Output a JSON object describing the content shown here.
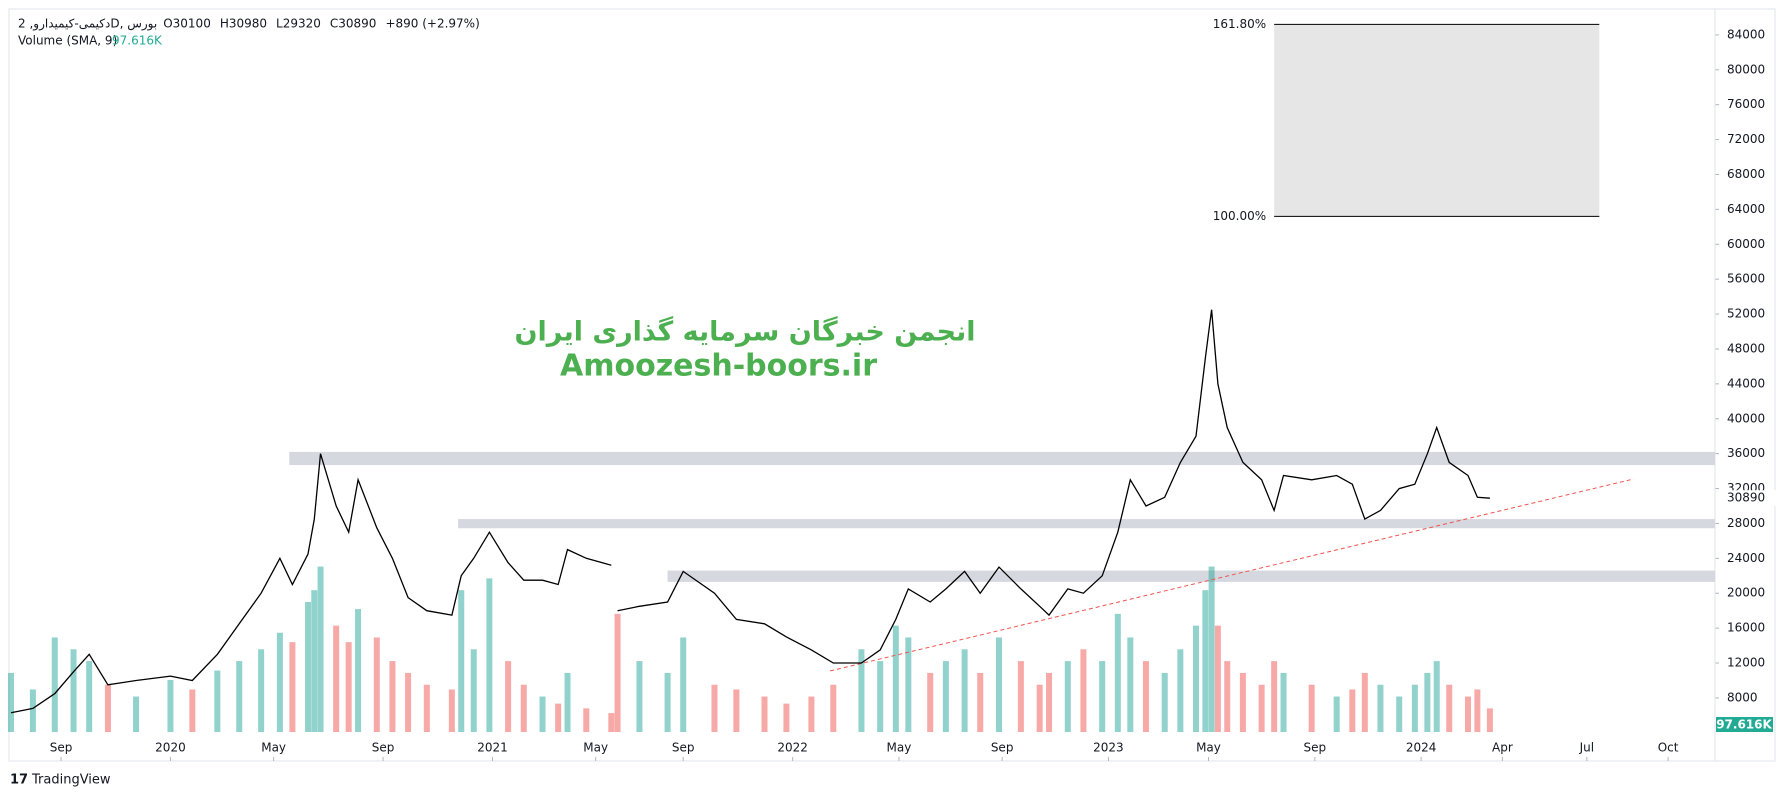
{
  "header": {
    "symbol": "دکیمی-کیمیدارو, 2D, بورس",
    "ohlc": [
      "O30100",
      "H30980",
      "L29320",
      "C30890",
      "+890 (+2.97%)"
    ],
    "indicator": "Volume (SMA, 9)"
  },
  "watermark": [
    "انجمن خبرگان سرمایه گذاری ایران",
    "Amoozesh-boors.ir"
  ],
  "footer": "TradingView",
  "chart_data": {
    "type": "line",
    "color": "#000000",
    "x": [
      2019.49,
      2019.56,
      2019.63,
      2019.69,
      2019.74,
      2019.8,
      2019.89,
      2020.0,
      2020.07,
      2020.15,
      2020.22,
      2020.29,
      2020.35,
      2020.39,
      2020.44,
      2020.46,
      2020.48,
      2020.53,
      2020.57,
      2020.6,
      2020.66,
      2020.71,
      2020.76,
      2020.82,
      2020.9,
      2020.93,
      2020.97,
      2021.02,
      2021.08,
      2021.13,
      2021.19,
      2021.24,
      2021.27,
      2021.33,
      2021.41,
      2021.42,
      2021.43,
      2021.5,
      2021.59,
      2021.64,
      2021.74,
      2021.81,
      2021.9,
      2021.97,
      2022.05,
      2022.12,
      2022.21,
      2022.27,
      2022.32,
      2022.36,
      2022.43,
      2022.48,
      2022.54,
      2022.59,
      2022.65,
      2022.72,
      2022.78,
      2022.81,
      2022.87,
      2022.92,
      2022.98,
      2023.03,
      2023.07,
      2023.12,
      2023.18,
      2023.23,
      2023.28,
      2023.31,
      2023.33,
      2023.35,
      2023.38,
      2023.43,
      2023.49,
      2023.53,
      2023.56,
      2023.65,
      2023.73,
      2023.78,
      2023.82,
      2023.87,
      2023.93,
      2023.98,
      2024.02,
      2024.05,
      2024.09,
      2024.15,
      2024.18,
      2024.22
    ],
    "values": [
      6300,
      6800,
      8500,
      11000,
      13000,
      9500,
      10000,
      10500,
      10000,
      13000,
      16500,
      20000,
      24000,
      21000,
      24500,
      28500,
      36000,
      30000,
      27000,
      33000,
      27500,
      24000,
      19500,
      18000,
      17500,
      22000,
      24000,
      27000,
      23500,
      21500,
      21500,
      21000,
      25000,
      24000,
      23200,
      null,
      18000,
      18500,
      19000,
      22500,
      20000,
      17000,
      16500,
      15000,
      13500,
      12000,
      12000,
      13500,
      17000,
      20500,
      19000,
      20500,
      22500,
      20000,
      23000,
      20500,
      18500,
      17500,
      20500,
      20000,
      22000,
      27000,
      33000,
      30000,
      31000,
      35000,
      38000,
      47000,
      52500,
      44000,
      39000,
      35000,
      33000,
      29500,
      33500,
      33000,
      33500,
      32500,
      28500,
      29500,
      32000,
      32500,
      36000,
      39000,
      35000,
      33500,
      31000,
      30890
    ],
    "volume": {
      "up_color": "rgba(38,166,154,0.5)",
      "down_color": "rgba(239,83,80,0.5)",
      "ylim": [
        0,
        3000000
      ],
      "values": [
        250000,
        180000,
        400000,
        350000,
        300000,
        200000,
        150000,
        220000,
        180000,
        260000,
        300000,
        350000,
        420000,
        380000,
        550000,
        600000,
        700000,
        450000,
        380000,
        520000,
        400000,
        300000,
        250000,
        200000,
        180000,
        600000,
        350000,
        650000,
        300000,
        200000,
        150000,
        120000,
        250000,
        100000,
        80000,
        null,
        500000,
        300000,
        250000,
        400000,
        200000,
        180000,
        150000,
        120000,
        150000,
        200000,
        350000,
        300000,
        450000,
        400000,
        250000,
        300000,
        350000,
        250000,
        400000,
        300000,
        200000,
        250000,
        300000,
        350000,
        300000,
        500000,
        400000,
        300000,
        250000,
        350000,
        450000,
        600000,
        700000,
        450000,
        300000,
        250000,
        200000,
        300000,
        250000,
        200000,
        150000,
        180000,
        250000,
        200000,
        150000,
        200000,
        250000,
        300000,
        200000,
        150000,
        180000,
        100000
      ],
      "sma": {
        "value": 97616,
        "label": "97.616K"
      },
      "sma_color": "#22ab94"
    },
    "last_price": 30890,
    "xlim": [
      2019.49,
      2024.94
    ],
    "ylim": [
      1000,
      88000
    ],
    "yticks": [
      8000,
      12000,
      16000,
      20000,
      24000,
      28000,
      32000,
      36000,
      40000,
      44000,
      48000,
      52000,
      56000,
      60000,
      64000,
      68000,
      72000,
      76000,
      80000,
      84000
    ],
    "xticks": [
      {
        "value": 2019.65,
        "label": "Sep"
      },
      {
        "value": 2020.0,
        "label": "2020"
      },
      {
        "value": 2020.33,
        "label": "May"
      },
      {
        "value": 2020.68,
        "label": "Sep"
      },
      {
        "value": 2021.03,
        "label": "2021"
      },
      {
        "value": 2021.36,
        "label": "May"
      },
      {
        "value": 2021.64,
        "label": "Sep"
      },
      {
        "value": 2021.99,
        "label": "2022"
      },
      {
        "value": 2022.33,
        "label": "May"
      },
      {
        "value": 2022.66,
        "label": "Sep"
      },
      {
        "value": 2023.0,
        "label": "2023"
      },
      {
        "value": 2023.32,
        "label": "May"
      },
      {
        "value": 2023.66,
        "label": "Sep"
      },
      {
        "value": 2024.0,
        "label": "2024"
      },
      {
        "value": 2024.26,
        "label": "Apr"
      },
      {
        "value": 2024.53,
        "label": "Jul"
      },
      {
        "value": 2024.79,
        "label": "Oct"
      }
    ],
    "zones": [
      {
        "from": 34700,
        "to": 36200,
        "x_start": 2020.38
      },
      {
        "from": 27450,
        "to": 28500,
        "x_start": 2020.92
      },
      {
        "from": 21300,
        "to": 22600,
        "x_start": 2021.59
      }
    ],
    "fib": {
      "x": [
        2023.53,
        2024.57
      ],
      "levels": [
        {
          "value": 85200,
          "label": "161.80%"
        },
        {
          "value": 63200,
          "label": "100.00%"
        }
      ]
    },
    "trendline": {
      "x": [
        2022.11,
        2024.68
      ],
      "values": [
        11100,
        33100
      ],
      "color": "#ef5350"
    }
  }
}
